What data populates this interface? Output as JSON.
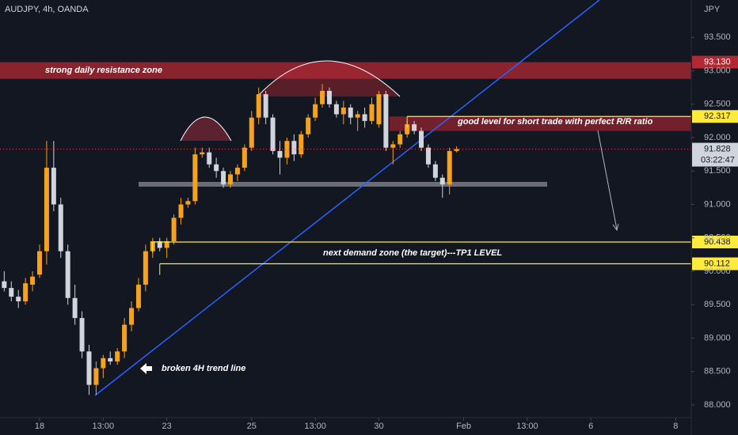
{
  "chart_data": {
    "type": "candlestick",
    "title": "AUDJPY, 4h, OANDA",
    "currency": "JPY",
    "up_color": "#f7a21b",
    "down_color": "#d1d4dc",
    "x": [
      -5,
      -4,
      -3,
      -2,
      -1,
      0,
      1,
      2,
      3,
      4,
      5,
      6,
      7,
      8,
      9,
      10,
      11,
      12,
      13,
      14,
      15,
      16,
      17,
      18,
      19,
      20,
      21,
      22,
      23,
      24,
      25,
      26,
      27,
      28,
      29,
      30,
      31,
      32,
      33,
      34,
      35,
      36,
      37,
      38,
      39,
      40,
      41,
      42,
      43,
      44,
      45,
      46,
      47,
      48,
      49,
      50,
      51,
      52,
      53,
      54,
      55,
      56,
      57,
      58,
      59
    ],
    "open": [
      89.85,
      89.75,
      89.62,
      89.55,
      89.8,
      89.95,
      90.3,
      91.55,
      91.0,
      90.3,
      89.6,
      89.3,
      88.8,
      88.3,
      88.55,
      88.7,
      88.65,
      88.8,
      89.2,
      89.45,
      89.8,
      90.3,
      90.45,
      90.35,
      90.45,
      90.8,
      91.0,
      91.05,
      91.75,
      91.78,
      91.6,
      91.5,
      91.3,
      91.45,
      91.55,
      91.85,
      92.3,
      92.65,
      92.3,
      91.8,
      91.7,
      91.95,
      91.75,
      92.05,
      92.3,
      92.5,
      92.7,
      92.5,
      92.35,
      92.45,
      92.3,
      92.35,
      92.25,
      92.2,
      92.65,
      91.85,
      91.9,
      92.05,
      92.2,
      92.1,
      91.85,
      91.6,
      91.4,
      91.3,
      91.8
    ],
    "high": [
      90.0,
      89.85,
      89.72,
      89.9,
      90.0,
      90.4,
      91.95,
      91.95,
      91.1,
      90.4,
      89.8,
      89.4,
      88.9,
      88.65,
      88.75,
      88.8,
      88.85,
      89.3,
      89.55,
      89.9,
      90.4,
      90.5,
      90.5,
      90.5,
      90.85,
      91.1,
      91.1,
      91.85,
      91.85,
      91.85,
      91.7,
      91.55,
      91.5,
      91.6,
      91.9,
      92.4,
      92.75,
      92.7,
      92.35,
      91.95,
      92.0,
      92.05,
      92.1,
      92.35,
      92.6,
      92.8,
      92.75,
      92.55,
      92.55,
      92.5,
      92.4,
      92.45,
      92.6,
      92.7,
      92.7,
      91.95,
      92.1,
      92.25,
      92.25,
      92.15,
      91.9,
      91.65,
      91.45,
      91.85,
      91.87
    ],
    "low": [
      89.7,
      89.55,
      89.45,
      89.5,
      89.7,
      89.9,
      90.1,
      90.9,
      90.2,
      89.5,
      89.2,
      88.7,
      88.15,
      88.15,
      88.4,
      88.6,
      88.6,
      88.7,
      89.1,
      89.4,
      89.7,
      90.2,
      90.3,
      90.2,
      90.4,
      90.7,
      90.95,
      91.0,
      91.7,
      91.55,
      91.4,
      91.25,
      91.25,
      91.35,
      91.5,
      91.8,
      92.2,
      92.2,
      91.75,
      91.45,
      91.6,
      91.65,
      91.7,
      92.0,
      92.25,
      92.45,
      92.45,
      92.3,
      92.2,
      92.2,
      92.1,
      92.15,
      92.2,
      92.15,
      91.8,
      91.6,
      91.85,
      92.0,
      92.05,
      91.8,
      91.55,
      91.35,
      91.1,
      91.15,
      91.78
    ],
    "close": [
      89.75,
      89.62,
      89.55,
      89.82,
      89.92,
      90.3,
      91.55,
      91.0,
      90.3,
      89.6,
      89.3,
      88.8,
      88.3,
      88.55,
      88.7,
      88.65,
      88.8,
      89.2,
      89.45,
      89.8,
      90.3,
      90.45,
      90.35,
      90.45,
      90.8,
      91.0,
      91.05,
      91.75,
      91.78,
      91.6,
      91.5,
      91.3,
      91.45,
      91.55,
      91.85,
      92.3,
      92.65,
      92.3,
      91.8,
      91.7,
      91.95,
      91.75,
      92.05,
      92.3,
      92.5,
      92.7,
      92.5,
      92.35,
      92.45,
      92.3,
      92.35,
      92.25,
      92.5,
      92.65,
      91.85,
      91.9,
      92.05,
      92.2,
      92.1,
      91.85,
      91.6,
      91.4,
      91.3,
      91.8,
      91.83
    ],
    "xlim": [
      -5.6,
      92.2
    ],
    "ylim": [
      87.81,
      94.06
    ],
    "xticks": [
      {
        "value": 0,
        "label": "18"
      },
      {
        "value": 9,
        "label": "13:00"
      },
      {
        "value": 18,
        "label": "23"
      },
      {
        "value": 30,
        "label": "25"
      },
      {
        "value": 39,
        "label": "13:00"
      },
      {
        "value": 48,
        "label": "30"
      },
      {
        "value": 60,
        "label": "Feb"
      },
      {
        "value": 69,
        "label": "13:00"
      },
      {
        "value": 78,
        "label": "6"
      },
      {
        "value": 90,
        "label": "8"
      }
    ],
    "yticks": [
      {
        "value": 88,
        "label": "88.000"
      },
      {
        "value": 88.5,
        "label": "88.500"
      },
      {
        "value": 89,
        "label": "89.000"
      },
      {
        "value": 89.5,
        "label": "89.500"
      },
      {
        "value": 90,
        "label": "90.000"
      },
      {
        "value": 90.5,
        "label": "90.500"
      },
      {
        "value": 91,
        "label": "91.000"
      },
      {
        "value": 91.5,
        "label": "91.500"
      },
      {
        "value": 92,
        "label": "92.000"
      },
      {
        "value": 92.5,
        "label": "92.500"
      },
      {
        "value": 93,
        "label": "93.000"
      },
      {
        "value": 93.5,
        "label": "93.500"
      }
    ],
    "zones": [
      {
        "label": "strong daily resistance zone",
        "low": 92.88,
        "high": 93.13,
        "from_x": -5.6
      },
      {
        "low": 92.1,
        "high": 92.317,
        "from_x": 49.5
      }
    ],
    "levels": [
      {
        "value": 92.317,
        "label": "92.317",
        "from_x": 52,
        "text": "good level for short trade with perfect R/R ratio"
      },
      {
        "value": 90.438,
        "label": "90.438",
        "from_x": 16,
        "text": "next demand zone (the target)---TP1 LEVEL"
      },
      {
        "value": 90.112,
        "label": "90.112",
        "from_x": 17
      }
    ],
    "resistance_label": {
      "value": 93.13,
      "label": "93.130"
    },
    "last_price": {
      "value": 91.828,
      "label": "91.828",
      "countdown": "03:22:47"
    },
    "trendline_note": "broken 4H trend line"
  }
}
